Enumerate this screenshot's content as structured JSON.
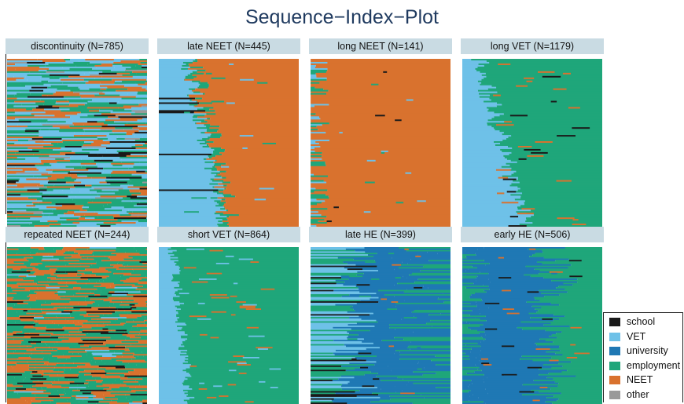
{
  "chart_data": {
    "type": "sequence-index-plot",
    "title": "Sequence−Index−Plot",
    "legend_position": "bottom-right",
    "states": [
      {
        "name": "school",
        "color": "#1a1a1a"
      },
      {
        "name": "VET",
        "color": "#6ec1e8"
      },
      {
        "name": "university",
        "color": "#1f78b4"
      },
      {
        "name": "employment",
        "color": "#1fa67a"
      },
      {
        "name": "NEET",
        "color": "#d9722e"
      },
      {
        "name": "other",
        "color": "#999999"
      }
    ],
    "panels": [
      {
        "label": "discontinuity (N=785)",
        "dominant": [
          "VET",
          "employment",
          "NEET"
        ]
      },
      {
        "label": "late NEET (N=445)",
        "dominant": [
          "VET",
          "NEET"
        ]
      },
      {
        "label": "long NEET (N=141)",
        "dominant": [
          "NEET"
        ]
      },
      {
        "label": "long VET (N=1179)",
        "dominant": [
          "VET",
          "employment"
        ]
      },
      {
        "label": "repeated NEET (N=244)",
        "dominant": [
          "employment",
          "NEET"
        ]
      },
      {
        "label": "short VET (N=864)",
        "dominant": [
          "VET",
          "employment"
        ]
      },
      {
        "label": "late HE (N=399)",
        "dominant": [
          "VET",
          "university",
          "employment"
        ]
      },
      {
        "label": "early HE (N=506)",
        "dominant": [
          "employment",
          "university"
        ]
      }
    ]
  }
}
